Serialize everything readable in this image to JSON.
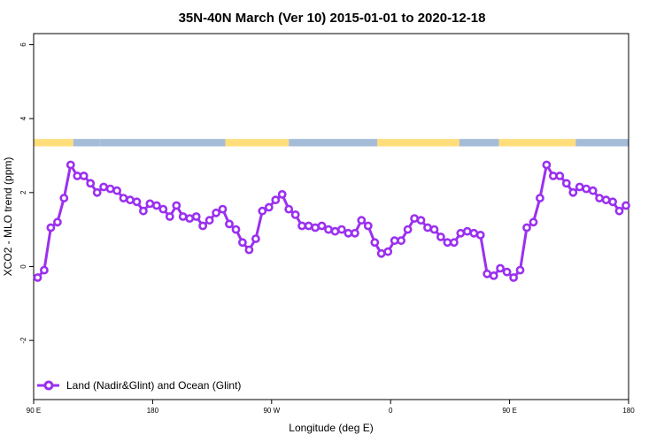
{
  "chart_data": {
    "type": "line",
    "title": "35N-40N March (Ver 10)   2015-01-01 to 2020-12-18",
    "xlabel": "Longitude (deg E)",
    "ylabel": "XCO2 - MLO trend (ppm)",
    "xlim": [
      90,
      540
    ],
    "ylim": [
      -3.6,
      6.3
    ],
    "x_ticks": [
      {
        "value": 90,
        "label": "90 E"
      },
      {
        "value": 180,
        "label": "180"
      },
      {
        "value": 270,
        "label": "90 W"
      },
      {
        "value": 360,
        "label": "0"
      },
      {
        "value": 450,
        "label": "90 E"
      },
      {
        "value": 540,
        "label": "180"
      }
    ],
    "y_ticks": [
      {
        "value": -2,
        "label": "-2"
      },
      {
        "value": 0,
        "label": "0"
      },
      {
        "value": 2,
        "label": "2"
      },
      {
        "value": 4,
        "label": "4"
      },
      {
        "value": 6,
        "label": "6"
      }
    ],
    "legend": {
      "position": "bottom-left",
      "entries": [
        "Land (Nadir&Glint) and Ocean (Glint)"
      ]
    },
    "colors": {
      "series": "#9b30f0",
      "land": "#ffdd7a",
      "ocean": "#a4bcd8"
    },
    "surface_band": {
      "y_range": [
        3.25,
        3.45
      ],
      "segments": [
        {
          "from": 90,
          "to": 120,
          "type": "land"
        },
        {
          "from": 120,
          "to": 140,
          "type": "ocean"
        },
        {
          "from": 140,
          "to": 235,
          "type": "ocean"
        },
        {
          "from": 235,
          "to": 283,
          "type": "land"
        },
        {
          "from": 283,
          "to": 350,
          "type": "ocean"
        },
        {
          "from": 350,
          "to": 412,
          "type": "land"
        },
        {
          "from": 412,
          "to": 442,
          "type": "ocean"
        },
        {
          "from": 442,
          "to": 500,
          "type": "land"
        },
        {
          "from": 500,
          "to": 540,
          "type": "ocean"
        }
      ]
    },
    "series": [
      {
        "name": "Land (Nadir&Glint) and Ocean (Glint)",
        "x": [
          93,
          98,
          103,
          108,
          113,
          118,
          123,
          128,
          133,
          138,
          143,
          148,
          153,
          158,
          163,
          168,
          173,
          178,
          183,
          188,
          193,
          198,
          203,
          208,
          213,
          218,
          223,
          228,
          233,
          238,
          243,
          248,
          253,
          258,
          263,
          268,
          273,
          278,
          283,
          288,
          293,
          298,
          303,
          308,
          313,
          318,
          323,
          328,
          333,
          338,
          343,
          348,
          353,
          358,
          363,
          368,
          373,
          378,
          383,
          388,
          393,
          398,
          403,
          408,
          413,
          418,
          423,
          428,
          433,
          438,
          443,
          448,
          453,
          458,
          463,
          468,
          473,
          478,
          483,
          488,
          493,
          498,
          503,
          508,
          513,
          518,
          523,
          528,
          533,
          538
        ],
        "values": [
          -0.3,
          -0.1,
          1.05,
          1.2,
          1.85,
          2.75,
          2.45,
          2.45,
          2.25,
          2.0,
          2.15,
          2.1,
          2.05,
          1.85,
          1.8,
          1.75,
          1.5,
          1.7,
          1.65,
          1.55,
          1.35,
          1.65,
          1.35,
          1.3,
          1.35,
          1.1,
          1.25,
          1.45,
          1.55,
          1.15,
          1.0,
          0.65,
          0.45,
          0.75,
          1.5,
          1.6,
          1.8,
          1.95,
          1.55,
          1.4,
          1.1,
          1.1,
          1.05,
          1.1,
          1.0,
          0.95,
          1.0,
          0.9,
          0.9,
          1.25,
          1.1,
          0.65,
          0.35,
          0.4,
          0.7,
          0.7,
          1.0,
          1.3,
          1.25,
          1.05,
          1.0,
          0.8,
          0.65,
          0.65,
          0.9,
          0.95,
          0.9,
          0.85,
          -0.2,
          -0.25,
          -0.05,
          -0.15,
          -0.3,
          -0.1,
          1.05,
          1.2,
          1.85,
          2.75,
          2.45,
          2.45,
          2.25,
          2.0,
          2.15,
          2.1,
          2.05,
          1.85,
          1.8,
          1.75,
          1.5,
          1.65
        ]
      }
    ]
  }
}
